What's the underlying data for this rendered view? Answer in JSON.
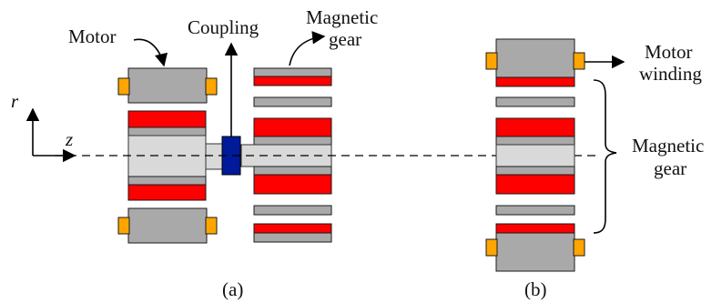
{
  "labels": {
    "motor": "Motor",
    "coupling": "Coupling",
    "magnetic_gear_a_line1": "Magnetic",
    "magnetic_gear_a_line2": "gear",
    "motor_winding_line1": "Motor",
    "motor_winding_line2": "winding",
    "magnetic_gear_b_line1": "Magnetic",
    "magnetic_gear_b_line2": "gear",
    "axis_r": "r",
    "axis_z": "z",
    "caption_a": "(a)",
    "caption_b": "(b)"
  },
  "colors": {
    "magnet_red": "#ff0000",
    "iron_gray": "#a9a9a9",
    "shaft_light_gray": "#d9d9d9",
    "winding_orange": "#ffa500",
    "coupling_blue": "#001a99"
  }
}
